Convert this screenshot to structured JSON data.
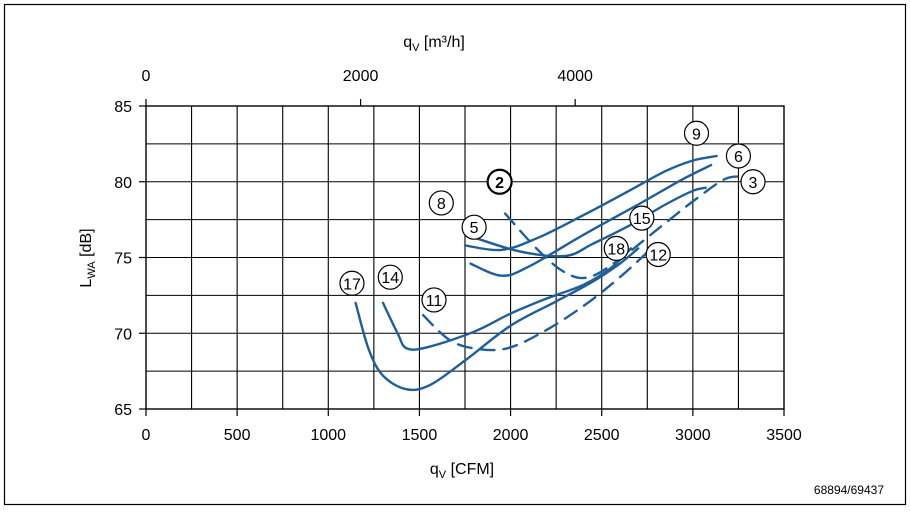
{
  "chart_data": {
    "type": "line",
    "xlabel_main": "q",
    "xlabel_sub": "V",
    "xlabel_unit": " [CFM]",
    "top_label_main": "q",
    "top_label_sub": "V",
    "top_label_unit": " [m³/h]",
    "ylabel_main": "L",
    "ylabel_sub": "WA",
    "ylabel_unit": " [dB]",
    "xlim": [
      0,
      3500
    ],
    "ylim": [
      65,
      85
    ],
    "x_ticks": [
      0,
      500,
      1000,
      1500,
      2000,
      2500,
      3000,
      3500
    ],
    "x_tick_labels": [
      "0",
      "500",
      "1000",
      "1500",
      "2000",
      "2500",
      "3000",
      "3500"
    ],
    "y_ticks": [
      65,
      70,
      75,
      80,
      85
    ],
    "y_tick_labels": [
      "65",
      "70",
      "75",
      "80",
      "85"
    ],
    "top_ticks_m3h": [
      0,
      2000,
      4000
    ],
    "top_tick_labels": [
      "0",
      "2000",
      "4000"
    ],
    "grid": true,
    "line_color": "#1f5f99",
    "footnote": "68894/69437",
    "series": [
      {
        "name": "9",
        "dashed": false,
        "points": [
          [
            1750,
            75.8
          ],
          [
            1950,
            75.5
          ],
          [
            2150,
            76.3
          ],
          [
            2400,
            77.8
          ],
          [
            2650,
            79.4
          ],
          [
            2850,
            80.7
          ],
          [
            3000,
            81.4
          ],
          [
            3130,
            81.7
          ]
        ]
      },
      {
        "name": "6",
        "dashed": false,
        "points": [
          [
            1780,
            74.6
          ],
          [
            1950,
            73.8
          ],
          [
            2100,
            74.4
          ],
          [
            2400,
            76.5
          ],
          [
            2700,
            78.5
          ],
          [
            2950,
            80.2
          ],
          [
            3100,
            81.1
          ]
        ]
      },
      {
        "name": "3",
        "dashed": true,
        "points": [
          [
            1970,
            77.9
          ],
          [
            2150,
            75.5
          ],
          [
            2300,
            74.0
          ],
          [
            2430,
            73.7
          ],
          [
            2600,
            74.9
          ],
          [
            2800,
            76.8
          ],
          [
            3000,
            78.7
          ],
          [
            3180,
            80.2
          ],
          [
            3300,
            80.3
          ]
        ]
      },
      {
        "name": "15",
        "dashed": false,
        "points": [
          [
            1780,
            76.4
          ],
          [
            2050,
            75.4
          ],
          [
            2300,
            75.1
          ],
          [
            2450,
            75.9
          ],
          [
            2650,
            77.1
          ],
          [
            2850,
            78.5
          ],
          [
            3000,
            79.4
          ],
          [
            3070,
            79.6
          ]
        ]
      },
      {
        "name": "12",
        "dashed": true,
        "points": [
          [
            1520,
            71.2
          ],
          [
            1660,
            69.6
          ],
          [
            1800,
            69.0
          ],
          [
            1980,
            69.0
          ],
          [
            2180,
            70.1
          ],
          [
            2400,
            71.8
          ],
          [
            2600,
            73.7
          ],
          [
            2800,
            75.9
          ]
        ]
      },
      {
        "name": "14",
        "dashed": false,
        "points": [
          [
            1300,
            72.0
          ],
          [
            1380,
            70.0
          ],
          [
            1430,
            69.0
          ],
          [
            1550,
            69.1
          ],
          [
            1800,
            70.1
          ],
          [
            2000,
            71.3
          ],
          [
            2200,
            72.3
          ],
          [
            2400,
            73.2
          ],
          [
            2550,
            74.3
          ],
          [
            2660,
            75.6
          ]
        ]
      },
      {
        "name": "17",
        "dashed": false,
        "points": [
          [
            1150,
            72.0
          ],
          [
            1220,
            69.0
          ],
          [
            1300,
            67.2
          ],
          [
            1430,
            66.3
          ],
          [
            1560,
            66.6
          ],
          [
            1750,
            68.2
          ],
          [
            2000,
            70.5
          ],
          [
            2250,
            72.1
          ],
          [
            2450,
            73.4
          ],
          [
            2600,
            74.6
          ],
          [
            2700,
            75.6
          ]
        ]
      }
    ],
    "annotations": [
      {
        "text": "9",
        "x": 3020,
        "y": 83.2,
        "bold": false
      },
      {
        "text": "6",
        "x": 3250,
        "y": 81.7,
        "bold": false
      },
      {
        "text": "3",
        "x": 3330,
        "y": 80.0,
        "bold": false
      },
      {
        "text": "2",
        "x": 1940,
        "y": 80.0,
        "bold": true
      },
      {
        "text": "8",
        "x": 1620,
        "y": 78.6,
        "bold": false
      },
      {
        "text": "5",
        "x": 1800,
        "y": 77.0,
        "bold": false
      },
      {
        "text": "15",
        "x": 2720,
        "y": 77.6,
        "bold": false
      },
      {
        "text": "18",
        "x": 2580,
        "y": 75.6,
        "bold": false
      },
      {
        "text": "12",
        "x": 2810,
        "y": 75.2,
        "bold": false
      },
      {
        "text": "14",
        "x": 1340,
        "y": 73.7,
        "bold": false
      },
      {
        "text": "17",
        "x": 1130,
        "y": 73.3,
        "bold": false
      },
      {
        "text": "11",
        "x": 1580,
        "y": 72.2,
        "bold": false
      }
    ]
  }
}
